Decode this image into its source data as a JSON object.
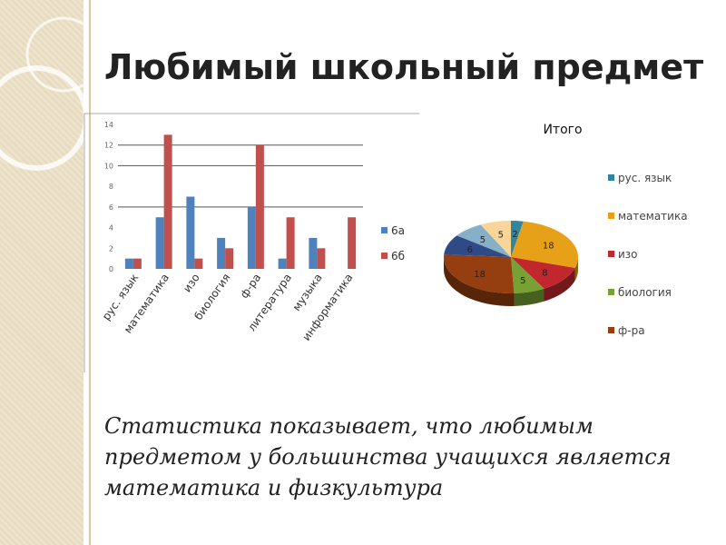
{
  "slide": {
    "title": "Любимый школьный предмет",
    "caption": "Статистика показывает, что любимым предметом у большинства учащихся является математика и физкультура"
  },
  "chart_data": [
    {
      "type": "bar",
      "title": "",
      "categories": [
        "рус. язык",
        "математика",
        "изо",
        "биология",
        "ф-ра",
        "литература",
        "музыка",
        "информатика"
      ],
      "series": [
        {
          "name": "6а",
          "color": "#4f81bd",
          "values": [
            1,
            5,
            7,
            3,
            6,
            1,
            3,
            0
          ]
        },
        {
          "name": "6б",
          "color": "#c0504d",
          "values": [
            1,
            13,
            1,
            2,
            12,
            5,
            2,
            5
          ]
        }
      ],
      "ylim": [
        0,
        14
      ],
      "yticks": [
        0,
        2,
        4,
        6,
        8,
        10,
        12,
        14
      ],
      "grid": true,
      "legend": "right"
    },
    {
      "type": "pie",
      "title": "Итого",
      "categories": [
        "рус. язык",
        "математика",
        "изо",
        "биология",
        "ф-ра",
        "литература",
        "музыка",
        "информатика"
      ],
      "values": [
        2,
        18,
        8,
        5,
        18,
        6,
        5,
        5
      ],
      "colors": [
        "#31859c",
        "#e6a118",
        "#c0282d",
        "#77a035",
        "#953e0f",
        "#2f4a87",
        "#86b0c8",
        "#fad59a"
      ],
      "legend_shown": [
        "рус. язык",
        "математика",
        "изо",
        "биология",
        "ф-ра"
      ],
      "legend": "right"
    }
  ]
}
